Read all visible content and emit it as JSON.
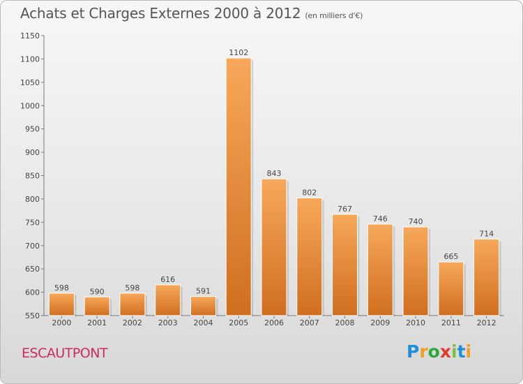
{
  "title": "Achats et Charges Externes 2000 à 2012",
  "subtitle": "(en milliers d'€)",
  "town": "ESCAUTPONT",
  "logo": {
    "text": "Proxiti",
    "letter_colors": [
      "#1f8fd6",
      "#f0a020",
      "#2da838",
      "#e03b2e",
      "#7cc242",
      "#1f8fd6",
      "#f0a020"
    ]
  },
  "chart_data": {
    "type": "bar",
    "title": "Achats et Charges Externes 2000 à 2012",
    "subtitle": "(en milliers d'€)",
    "categories": [
      "2000",
      "2001",
      "2002",
      "2003",
      "2004",
      "2005",
      "2006",
      "2007",
      "2008",
      "2009",
      "2010",
      "2011",
      "2012"
    ],
    "values": [
      598,
      590,
      598,
      616,
      591,
      1102,
      843,
      802,
      767,
      746,
      740,
      665,
      714
    ],
    "ylim": [
      550,
      1150
    ],
    "yticks": [
      550,
      600,
      650,
      700,
      750,
      800,
      850,
      900,
      950,
      1000,
      1050,
      1100,
      1150
    ],
    "grid": false,
    "bar_color_top": "#f7a85a",
    "bar_color_bottom": "#d06e1f"
  }
}
